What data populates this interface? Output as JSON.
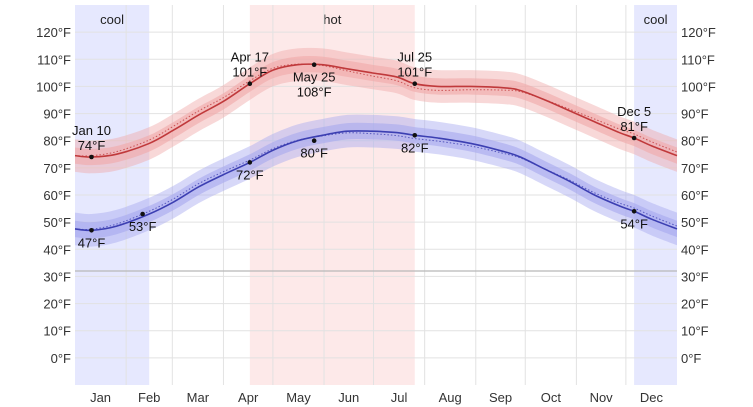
{
  "chart_data": {
    "type": "area",
    "title": "",
    "xlabel": "",
    "ylabel": "",
    "ylim": [
      -10,
      130
    ],
    "y_ticks": [
      "0°F",
      "10°F",
      "20°F",
      "30°F",
      "40°F",
      "50°F",
      "60°F",
      "70°F",
      "80°F",
      "90°F",
      "100°F",
      "110°F",
      "120°F"
    ],
    "y_tick_values": [
      0,
      10,
      20,
      30,
      40,
      50,
      60,
      70,
      80,
      90,
      100,
      110,
      120
    ],
    "months": [
      "Jan",
      "Feb",
      "Mar",
      "Apr",
      "May",
      "Jun",
      "Jul",
      "Aug",
      "Sep",
      "Oct",
      "Nov",
      "Dec"
    ],
    "grid": true,
    "freezing_line": 32,
    "seasons": [
      {
        "label": "cool",
        "start_day": 0,
        "end_day": 45,
        "color": "#e6e8fe"
      },
      {
        "label": "hot",
        "start_day": 106,
        "end_day": 206,
        "color": "#fde9e9"
      },
      {
        "label": "cool",
        "start_day": 339,
        "end_day": 365,
        "color": "#e6e8fe"
      }
    ],
    "series": [
      {
        "color": "#c0393b",
        "band_color": "#f0a9a9",
        "x_days": [
          0,
          10,
          25,
          45,
          60,
          75,
          90,
          106,
          120,
          135,
          150,
          165,
          180,
          195,
          206,
          220,
          240,
          260,
          270,
          285,
          300,
          315,
          330,
          339,
          350,
          365
        ],
        "values": [
          74.5,
          74,
          75,
          79,
          84,
          89.5,
          94.5,
          101,
          106,
          108,
          108,
          106.5,
          105,
          103.5,
          101,
          100,
          100,
          99.5,
          98.5,
          95,
          91,
          87,
          83,
          81,
          78,
          74.5
        ],
        "spread_inner": 3,
        "spread_outer": 6
      },
      {
        "color": "#3c3fb2",
        "band_color": "#a7a9ef",
        "x_days": [
          0,
          10,
          25,
          45,
          60,
          75,
          90,
          106,
          120,
          135,
          150,
          165,
          180,
          195,
          206,
          220,
          240,
          260,
          270,
          285,
          300,
          315,
          330,
          339,
          350,
          365
        ],
        "values": [
          47.5,
          47,
          48.5,
          53,
          57.5,
          63,
          67.5,
          72,
          76.5,
          80,
          82,
          83.5,
          83.5,
          83,
          82,
          81,
          79,
          76,
          74,
          69.5,
          65,
          60,
          56,
          54,
          51,
          47.5
        ],
        "spread_inner": 3,
        "spread_outer": 6
      }
    ],
    "annotations": [
      {
        "series": 0,
        "day": 10,
        "value": 74,
        "date": "Jan 10",
        "temp": "74°F",
        "position": "above"
      },
      {
        "series": 0,
        "day": 106,
        "value": 101,
        "date": "Apr 17",
        "temp": "101°F",
        "position": "above"
      },
      {
        "series": 0,
        "day": 145,
        "value": 108,
        "date": "May 25",
        "temp": "108°F",
        "position": "below"
      },
      {
        "series": 0,
        "day": 206,
        "value": 101,
        "date": "Jul 25",
        "temp": "101°F",
        "position": "above"
      },
      {
        "series": 0,
        "day": 339,
        "value": 81,
        "date": "Dec 5",
        "temp": "81°F",
        "position": "above"
      },
      {
        "series": 1,
        "day": 10,
        "value": 47,
        "date": "",
        "temp": "47°F",
        "position": "below"
      },
      {
        "series": 1,
        "day": 41,
        "value": 53,
        "date": "",
        "temp": "53°F",
        "position": "below"
      },
      {
        "series": 1,
        "day": 106,
        "value": 72,
        "date": "",
        "temp": "72°F",
        "position": "below"
      },
      {
        "series": 1,
        "day": 145,
        "value": 80,
        "date": "",
        "temp": "80°F",
        "position": "below"
      },
      {
        "series": 1,
        "day": 206,
        "value": 82,
        "date": "",
        "temp": "82°F",
        "position": "below"
      },
      {
        "series": 1,
        "day": 339,
        "value": 54,
        "date": "",
        "temp": "54°F",
        "position": "below"
      }
    ]
  }
}
